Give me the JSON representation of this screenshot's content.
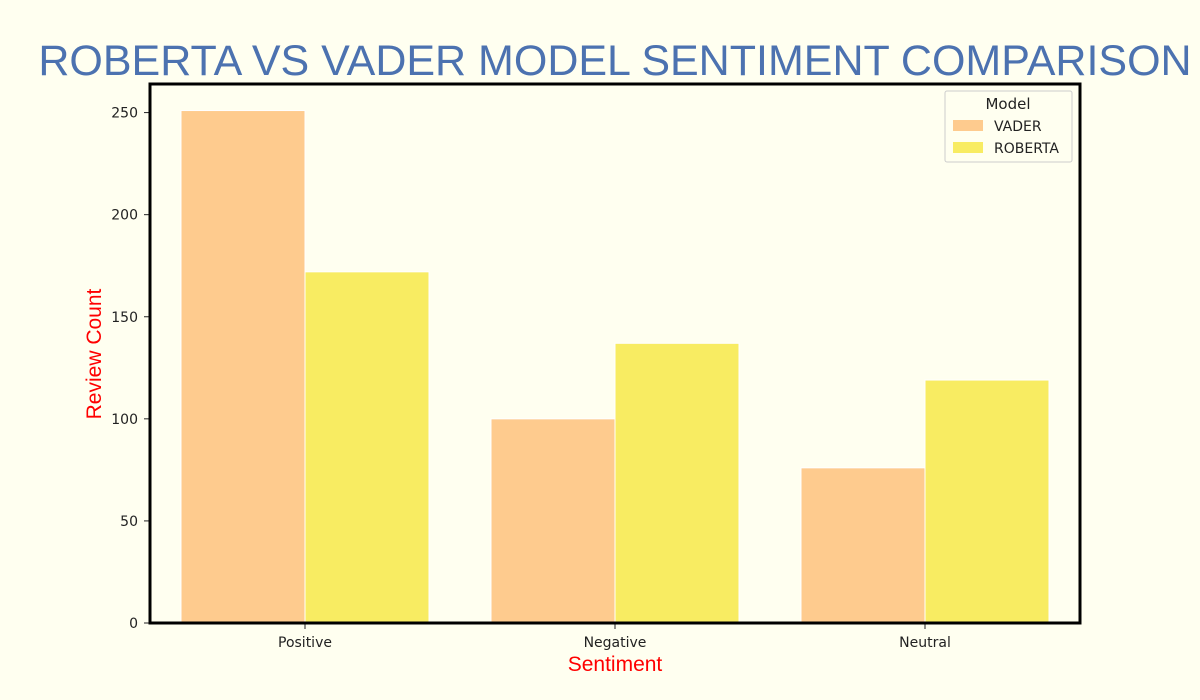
{
  "chart_data": {
    "type": "bar",
    "title": "ROBERTA VS VADER MODEL SENTIMENT COMPARISON",
    "xlabel": "Sentiment",
    "ylabel": "Review Count",
    "categories": [
      "Positive",
      "Negative",
      "Neutral"
    ],
    "series": [
      {
        "name": "VADER",
        "values": [
          251,
          100,
          76
        ],
        "color": "#fecb8e"
      },
      {
        "name": "ROBERTA",
        "values": [
          172,
          137,
          119
        ],
        "color": "#f8ec62"
      }
    ],
    "ylim": [
      0,
      264
    ],
    "yticks": [
      0,
      50,
      100,
      150,
      200,
      250
    ],
    "grid": false,
    "legend": {
      "title": "Model",
      "placement": "top-right"
    }
  },
  "colors": {
    "background": "#fffff0",
    "title": "#4c72b0",
    "axis_label": "#ff0000",
    "axes_frame": "#000000"
  }
}
